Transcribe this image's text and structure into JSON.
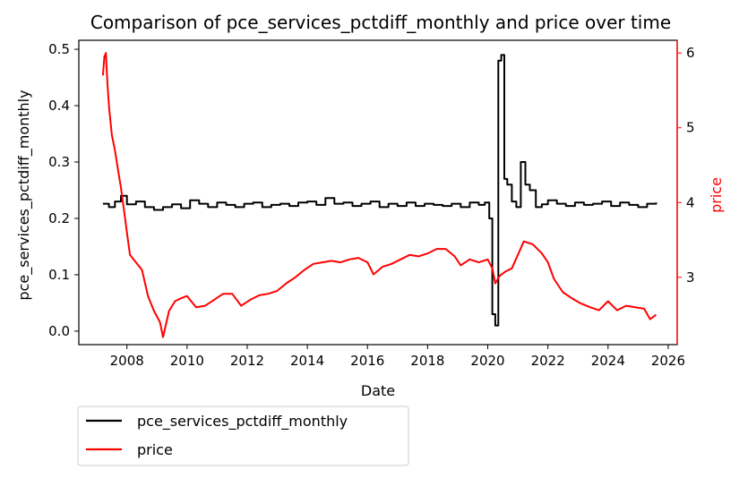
{
  "chart_data": {
    "type": "line",
    "title": "Comparison of pce_services_pctdiff_monthly and price over time",
    "xlabel": "Date",
    "ylabel_left": "pce_services_pctdiff_monthly",
    "ylabel_right": "price",
    "xlim": [
      2006.4,
      2026.3
    ],
    "x_ticks": [
      2008,
      2010,
      2012,
      2014,
      2016,
      2018,
      2020,
      2022,
      2024,
      2026
    ],
    "ylim_left": [
      -0.024,
      0.516
    ],
    "y_ticks_left": [
      0.0,
      0.1,
      0.2,
      0.3,
      0.4,
      0.5
    ],
    "ylim_right": [
      2.1,
      6.17
    ],
    "y_ticks_right": [
      3,
      4,
      5,
      6
    ],
    "grid": false,
    "legend_position": "below-left",
    "colors": {
      "left_series": "#000000",
      "right_series": "#ff0000",
      "right_axis": "#ff0000"
    },
    "series": [
      {
        "name": "pce_services_pctdiff_monthly",
        "axis": "left",
        "step": true,
        "x": [
          2007.2,
          2007.4,
          2007.6,
          2007.8,
          2008.0,
          2008.3,
          2008.6,
          2008.9,
          2009.2,
          2009.5,
          2009.8,
          2010.1,
          2010.4,
          2010.7,
          2011.0,
          2011.3,
          2011.6,
          2011.9,
          2012.2,
          2012.5,
          2012.8,
          2013.1,
          2013.4,
          2013.7,
          2014.0,
          2014.3,
          2014.6,
          2014.9,
          2015.2,
          2015.5,
          2015.8,
          2016.1,
          2016.4,
          2016.7,
          2017.0,
          2017.3,
          2017.6,
          2017.9,
          2018.2,
          2018.5,
          2018.8,
          2019.1,
          2019.4,
          2019.7,
          2019.9,
          2020.05,
          2020.15,
          2020.25,
          2020.35,
          2020.45,
          2020.55,
          2020.65,
          2020.8,
          2020.95,
          2021.1,
          2021.25,
          2021.4,
          2021.6,
          2021.8,
          2022.0,
          2022.3,
          2022.6,
          2022.9,
          2023.2,
          2023.5,
          2023.8,
          2024.1,
          2024.4,
          2024.7,
          2025.0,
          2025.3,
          2025.6
        ],
        "values": [
          0.226,
          0.22,
          0.23,
          0.24,
          0.225,
          0.23,
          0.22,
          0.215,
          0.22,
          0.225,
          0.218,
          0.232,
          0.226,
          0.22,
          0.228,
          0.224,
          0.22,
          0.226,
          0.228,
          0.22,
          0.224,
          0.226,
          0.222,
          0.228,
          0.23,
          0.224,
          0.236,
          0.226,
          0.228,
          0.222,
          0.226,
          0.23,
          0.22,
          0.226,
          0.222,
          0.228,
          0.222,
          0.226,
          0.224,
          0.222,
          0.226,
          0.22,
          0.228,
          0.224,
          0.228,
          0.2,
          0.03,
          0.01,
          0.48,
          0.49,
          0.27,
          0.26,
          0.23,
          0.22,
          0.3,
          0.26,
          0.25,
          0.22,
          0.225,
          0.232,
          0.226,
          0.222,
          0.228,
          0.224,
          0.226,
          0.23,
          0.222,
          0.228,
          0.224,
          0.22,
          0.226,
          0.228
        ]
      },
      {
        "name": "price",
        "axis": "right",
        "step": false,
        "x": [
          2007.2,
          2007.25,
          2007.3,
          2007.35,
          2007.4,
          2007.45,
          2007.5,
          2007.6,
          2007.7,
          2007.8,
          2007.9,
          2008.0,
          2008.1,
          2008.3,
          2008.5,
          2008.7,
          2008.9,
          2009.1,
          2009.2,
          2009.4,
          2009.6,
          2009.8,
          2010.0,
          2010.3,
          2010.6,
          2010.9,
          2011.2,
          2011.5,
          2011.8,
          2012.1,
          2012.4,
          2012.7,
          2013.0,
          2013.3,
          2013.6,
          2013.9,
          2014.2,
          2014.5,
          2014.8,
          2015.1,
          2015.4,
          2015.7,
          2016.0,
          2016.2,
          2016.5,
          2016.8,
          2017.1,
          2017.4,
          2017.7,
          2018.0,
          2018.3,
          2018.6,
          2018.9,
          2019.1,
          2019.4,
          2019.7,
          2020.0,
          2020.15,
          2020.25,
          2020.4,
          2020.6,
          2020.8,
          2021.0,
          2021.2,
          2021.5,
          2021.8,
          2022.0,
          2022.2,
          2022.5,
          2022.8,
          2023.1,
          2023.4,
          2023.7,
          2024.0,
          2024.3,
          2024.6,
          2024.9,
          2025.2,
          2025.4,
          2025.6
        ],
        "values": [
          5.7,
          5.95,
          6.0,
          5.6,
          5.3,
          5.1,
          4.9,
          4.7,
          4.45,
          4.2,
          3.9,
          3.6,
          3.3,
          3.2,
          3.1,
          2.75,
          2.55,
          2.4,
          2.2,
          2.55,
          2.68,
          2.72,
          2.75,
          2.6,
          2.62,
          2.7,
          2.78,
          2.78,
          2.62,
          2.7,
          2.76,
          2.78,
          2.82,
          2.92,
          3.0,
          3.1,
          3.18,
          3.2,
          3.22,
          3.2,
          3.24,
          3.26,
          3.2,
          3.04,
          3.14,
          3.18,
          3.24,
          3.3,
          3.28,
          3.32,
          3.38,
          3.38,
          3.28,
          3.16,
          3.24,
          3.2,
          3.24,
          3.12,
          2.92,
          3.02,
          3.08,
          3.12,
          3.3,
          3.48,
          3.44,
          3.32,
          3.2,
          2.98,
          2.8,
          2.72,
          2.65,
          2.6,
          2.56,
          2.68,
          2.56,
          2.62,
          2.6,
          2.58,
          2.44,
          2.5
        ]
      }
    ]
  }
}
